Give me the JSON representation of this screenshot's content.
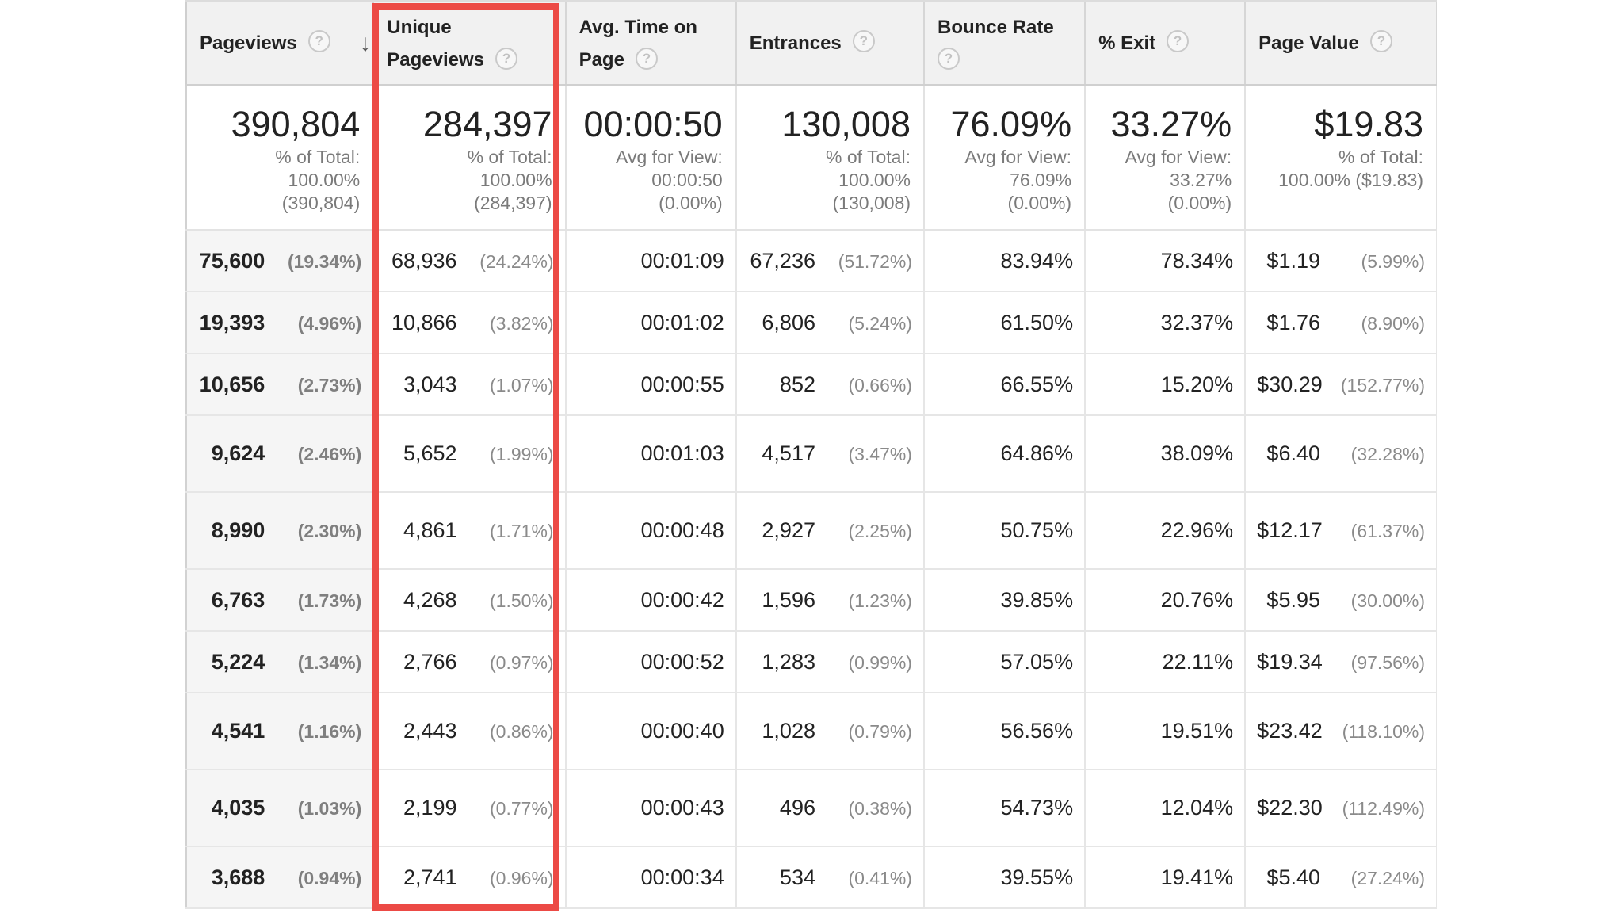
{
  "table": {
    "headers": [
      {
        "label": "Pageviews",
        "help_icon": "question-icon",
        "sort": "arrow-down-icon"
      },
      {
        "label_line1": "Unique",
        "label_line2": "Pageviews",
        "help_icon": "question-icon"
      },
      {
        "label_line1": "Avg. Time on",
        "label_line2": "Page",
        "help_icon": "question-icon"
      },
      {
        "label": "Entrances",
        "help_icon": "question-icon"
      },
      {
        "label": "Bounce Rate",
        "help_icon": "question-icon"
      },
      {
        "label": "% Exit",
        "help_icon": "question-icon"
      },
      {
        "label": "Page Value",
        "help_icon": "question-icon"
      }
    ],
    "summary": [
      {
        "value": "390,804",
        "line1": "% of Total:",
        "line2": "100.00%",
        "line3": "(390,804)"
      },
      {
        "value": "284,397",
        "line1": "% of Total:",
        "line2": "100.00%",
        "line3": "(284,397)"
      },
      {
        "value": "00:00:50",
        "line1": "Avg for View:",
        "line2": "00:00:50",
        "line3": "(0.00%)"
      },
      {
        "value": "130,008",
        "line1": "% of Total:",
        "line2": "100.00%",
        "line3": "(130,008)"
      },
      {
        "value": "76.09%",
        "line1": "Avg for View:",
        "line2": "76.09%",
        "line3": "(0.00%)"
      },
      {
        "value": "33.27%",
        "line1": "Avg for View:",
        "line2": "33.27%",
        "line3": "(0.00%)"
      },
      {
        "value": "$19.83",
        "line1": "% of Total:",
        "line2": "100.00% ($19.83)",
        "line3": ""
      }
    ],
    "rows": [
      {
        "pageviews": "75,600",
        "pageviews_pct": "(19.34%)",
        "unique": "68,936",
        "unique_pct": "(24.24%)",
        "avg_time": "00:01:09",
        "entrances": "67,236",
        "entrances_pct": "(51.72%)",
        "bounce": "83.94%",
        "exit": "78.34%",
        "value": "$1.19",
        "value_pct": "(5.99%)"
      },
      {
        "pageviews": "19,393",
        "pageviews_pct": "(4.96%)",
        "unique": "10,866",
        "unique_pct": "(3.82%)",
        "avg_time": "00:01:02",
        "entrances": "6,806",
        "entrances_pct": "(5.24%)",
        "bounce": "61.50%",
        "exit": "32.37%",
        "value": "$1.76",
        "value_pct": "(8.90%)"
      },
      {
        "pageviews": "10,656",
        "pageviews_pct": "(2.73%)",
        "unique": "3,043",
        "unique_pct": "(1.07%)",
        "avg_time": "00:00:55",
        "entrances": "852",
        "entrances_pct": "(0.66%)",
        "bounce": "66.55%",
        "exit": "15.20%",
        "value": "$30.29",
        "value_pct": "(152.77%)"
      },
      {
        "pageviews": "9,624",
        "pageviews_pct": "(2.46%)",
        "unique": "5,652",
        "unique_pct": "(1.99%)",
        "avg_time": "00:01:03",
        "entrances": "4,517",
        "entrances_pct": "(3.47%)",
        "bounce": "64.86%",
        "exit": "38.09%",
        "value": "$6.40",
        "value_pct": "(32.28%)"
      },
      {
        "pageviews": "8,990",
        "pageviews_pct": "(2.30%)",
        "unique": "4,861",
        "unique_pct": "(1.71%)",
        "avg_time": "00:00:48",
        "entrances": "2,927",
        "entrances_pct": "(2.25%)",
        "bounce": "50.75%",
        "exit": "22.96%",
        "value": "$12.17",
        "value_pct": "(61.37%)"
      },
      {
        "pageviews": "6,763",
        "pageviews_pct": "(1.73%)",
        "unique": "4,268",
        "unique_pct": "(1.50%)",
        "avg_time": "00:00:42",
        "entrances": "1,596",
        "entrances_pct": "(1.23%)",
        "bounce": "39.85%",
        "exit": "20.76%",
        "value": "$5.95",
        "value_pct": "(30.00%)"
      },
      {
        "pageviews": "5,224",
        "pageviews_pct": "(1.34%)",
        "unique": "2,766",
        "unique_pct": "(0.97%)",
        "avg_time": "00:00:52",
        "entrances": "1,283",
        "entrances_pct": "(0.99%)",
        "bounce": "57.05%",
        "exit": "22.11%",
        "value": "$19.34",
        "value_pct": "(97.56%)"
      },
      {
        "pageviews": "4,541",
        "pageviews_pct": "(1.16%)",
        "unique": "2,443",
        "unique_pct": "(0.86%)",
        "avg_time": "00:00:40",
        "entrances": "1,028",
        "entrances_pct": "(0.79%)",
        "bounce": "56.56%",
        "exit": "19.51%",
        "value": "$23.42",
        "value_pct": "(118.10%)"
      },
      {
        "pageviews": "4,035",
        "pageviews_pct": "(1.03%)",
        "unique": "2,199",
        "unique_pct": "(0.77%)",
        "avg_time": "00:00:43",
        "entrances": "496",
        "entrances_pct": "(0.38%)",
        "bounce": "54.73%",
        "exit": "12.04%",
        "value": "$22.30",
        "value_pct": "(112.49%)"
      },
      {
        "pageviews": "3,688",
        "pageviews_pct": "(0.94%)",
        "unique": "2,741",
        "unique_pct": "(0.96%)",
        "avg_time": "00:00:34",
        "entrances": "534",
        "entrances_pct": "(0.41%)",
        "bounce": "39.55%",
        "exit": "19.41%",
        "value": "$5.40",
        "value_pct": "(27.24%)"
      }
    ]
  },
  "colors": {
    "highlight": "#ec4a45",
    "header_bg": "#f1f1f1",
    "muted_text": "#8a8a8a"
  }
}
